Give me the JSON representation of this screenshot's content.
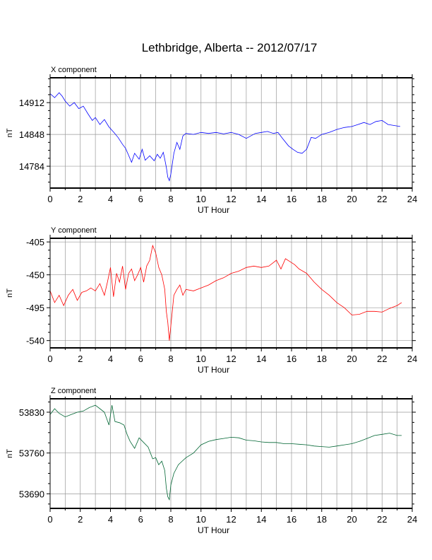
{
  "title": "Lethbridge, Alberta -- 2012/07/17",
  "chart_data": [
    {
      "type": "line",
      "title": "X component",
      "xlabel": "UT Hour",
      "ylabel": "nT",
      "color": "#0000ff",
      "xlim": [
        0,
        24
      ],
      "ylim": [
        14740,
        14962
      ],
      "xticks": [
        "0",
        "2",
        "4",
        "6",
        "8",
        "10",
        "12",
        "14",
        "16",
        "18",
        "20",
        "22",
        "24"
      ],
      "yticks": [
        "14912",
        "14848",
        "14784"
      ],
      "ytick_values": [
        14912,
        14848,
        14784
      ],
      "grid": true,
      "x": [
        0,
        0.3,
        0.6,
        0.8,
        1.0,
        1.3,
        1.6,
        1.9,
        2.2,
        2.5,
        2.8,
        3.0,
        3.3,
        3.6,
        3.9,
        4.2,
        4.5,
        4.8,
        5.0,
        5.2,
        5.4,
        5.6,
        5.9,
        6.1,
        6.3,
        6.6,
        6.9,
        7.1,
        7.3,
        7.5,
        7.6,
        7.7,
        7.8,
        7.9,
        8.0,
        8.2,
        8.4,
        8.6,
        8.8,
        9,
        9.5,
        10,
        10.5,
        11,
        11.5,
        12,
        12.5,
        13,
        13.3,
        13.6,
        14,
        14.4,
        14.8,
        15.1,
        15.4,
        15.8,
        16.1,
        16.4,
        16.7,
        17.0,
        17.3,
        17.6,
        18,
        18.5,
        19,
        19.5,
        20,
        20.4,
        20.8,
        21.2,
        21.6,
        22,
        22.4,
        22.8,
        23.2
      ],
      "y": [
        14930,
        14922,
        14932,
        14925,
        14915,
        14905,
        14912,
        14900,
        14905,
        14890,
        14876,
        14882,
        14868,
        14878,
        14863,
        14853,
        14842,
        14828,
        14820,
        14806,
        14792,
        14810,
        14798,
        14818,
        14796,
        14805,
        14795,
        14808,
        14800,
        14812,
        14798,
        14782,
        14762,
        14755,
        14768,
        14810,
        14832,
        14818,
        14845,
        14850,
        14848,
        14852,
        14850,
        14852,
        14849,
        14852,
        14848,
        14840,
        14845,
        14850,
        14852,
        14854,
        14850,
        14852,
        14840,
        14825,
        14818,
        14812,
        14810,
        14818,
        14842,
        14840,
        14848,
        14852,
        14858,
        14862,
        14864,
        14868,
        14872,
        14868,
        14874,
        14876,
        14868,
        14866,
        14864
      ]
    },
    {
      "type": "line",
      "title": "Y component",
      "xlabel": "UT Hour",
      "ylabel": "nT",
      "color": "#ff0000",
      "xlim": [
        0,
        24
      ],
      "ylim": [
        -550,
        -400
      ],
      "xticks": [
        "0",
        "2",
        "4",
        "6",
        "8",
        "10",
        "12",
        "14",
        "16",
        "18",
        "20",
        "22",
        "24"
      ],
      "yticks": [
        "-405",
        "-450",
        "-495",
        "-540"
      ],
      "ytick_values": [
        -405,
        -450,
        -495,
        -540
      ],
      "grid": true,
      "x": [
        0,
        0.3,
        0.6,
        0.9,
        1.2,
        1.5,
        1.8,
        2.1,
        2.4,
        2.7,
        3.0,
        3.3,
        3.6,
        3.8,
        4.0,
        4.2,
        4.4,
        4.6,
        4.8,
        5.0,
        5.2,
        5.4,
        5.6,
        5.8,
        6.0,
        6.2,
        6.4,
        6.6,
        6.8,
        7.0,
        7.2,
        7.4,
        7.6,
        7.7,
        7.8,
        7.9,
        8.0,
        8.2,
        8.4,
        8.6,
        8.8,
        9,
        9.5,
        10,
        10.5,
        11,
        11.5,
        12,
        12.5,
        13,
        13.5,
        14,
        14.5,
        15,
        15.3,
        15.6,
        15.9,
        16.2,
        16.5,
        17,
        17.5,
        18,
        18.5,
        19,
        19.5,
        20,
        20.5,
        21,
        21.5,
        22,
        22.5,
        23,
        23.3
      ],
      "y": [
        -472,
        -488,
        -478,
        -492,
        -478,
        -470,
        -485,
        -474,
        -472,
        -468,
        -472,
        -462,
        -478,
        -460,
        -440,
        -480,
        -448,
        -460,
        -438,
        -470,
        -448,
        -442,
        -458,
        -450,
        -440,
        -460,
        -438,
        -430,
        -410,
        -420,
        -440,
        -450,
        -470,
        -500,
        -515,
        -540,
        -520,
        -478,
        -470,
        -464,
        -478,
        -470,
        -472,
        -468,
        -464,
        -458,
        -454,
        -448,
        -445,
        -440,
        -438,
        -440,
        -438,
        -430,
        -442,
        -428,
        -432,
        -436,
        -442,
        -448,
        -460,
        -470,
        -478,
        -488,
        -495,
        -505,
        -504,
        -500,
        -500,
        -501,
        -496,
        -492,
        -488
      ]
    },
    {
      "type": "line",
      "title": "Z component",
      "xlabel": "UT Hour",
      "ylabel": "nT",
      "color": "#006633",
      "xlim": [
        0,
        24
      ],
      "ylim": [
        53665,
        53853
      ],
      "xticks": [
        "0",
        "2",
        "4",
        "6",
        "8",
        "10",
        "12",
        "14",
        "16",
        "18",
        "20",
        "22",
        "24"
      ],
      "yticks": [
        "53830",
        "53760",
        "53690"
      ],
      "ytick_values": [
        53830,
        53760,
        53690
      ],
      "grid": true,
      "x": [
        0,
        0.3,
        0.6,
        1.0,
        1.4,
        1.8,
        2.2,
        2.6,
        3.0,
        3.3,
        3.6,
        3.9,
        4.1,
        4.3,
        4.6,
        4.9,
        5.1,
        5.3,
        5.6,
        5.9,
        6.2,
        6.5,
        6.8,
        7.0,
        7.2,
        7.4,
        7.6,
        7.7,
        7.8,
        7.9,
        8.0,
        8.2,
        8.5,
        9.0,
        9.5,
        10,
        10.5,
        11,
        11.5,
        12,
        12.5,
        13,
        13.5,
        14,
        14.5,
        15,
        15.5,
        16,
        16.5,
        17,
        17.5,
        18,
        18.5,
        19,
        19.5,
        20,
        20.5,
        21,
        21.5,
        22,
        22.5,
        23,
        23.3
      ],
      "y": [
        53826,
        53836,
        53828,
        53822,
        53826,
        53830,
        53832,
        53838,
        53842,
        53836,
        53830,
        53808,
        53842,
        53814,
        53812,
        53808,
        53792,
        53780,
        53768,
        53786,
        53778,
        53770,
        53750,
        53752,
        53740,
        53746,
        53730,
        53700,
        53685,
        53680,
        53705,
        53725,
        53740,
        53752,
        53760,
        53774,
        53780,
        53783,
        53785,
        53787,
        53786,
        53782,
        53781,
        53779,
        53778,
        53778,
        53776,
        53776,
        53775,
        53774,
        53772,
        53771,
        53770,
        53772,
        53774,
        53776,
        53780,
        53785,
        53790,
        53792,
        53794,
        53790,
        53790
      ]
    }
  ]
}
